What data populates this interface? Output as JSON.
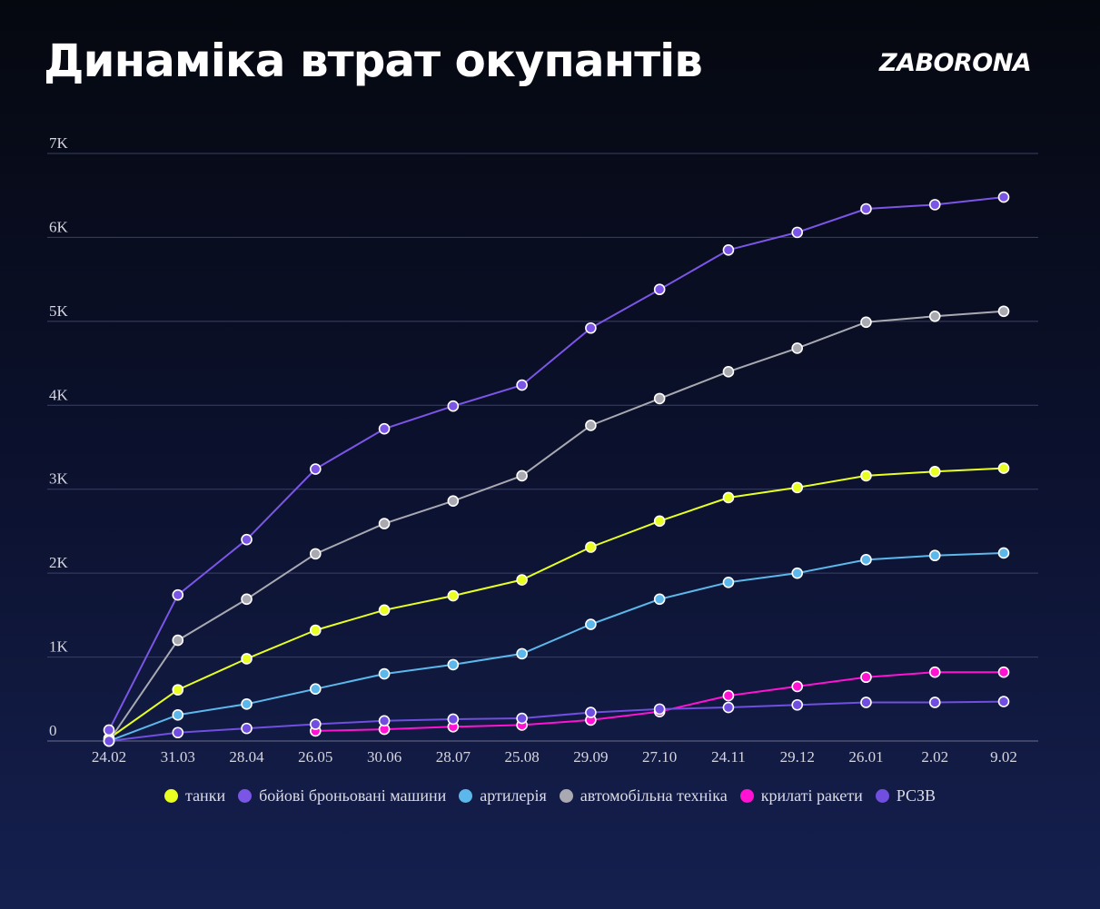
{
  "header": {
    "title": "Динаміка втрат окупантів",
    "logo": "ZABORONA"
  },
  "chart_data": {
    "type": "line",
    "title": "Динаміка втрат окупантів",
    "xlabel": "",
    "ylabel": "",
    "categories": [
      "24.02",
      "31.03",
      "28.04",
      "26.05",
      "30.06",
      "28.07",
      "25.08",
      "29.09",
      "27.10",
      "24.11",
      "29.12",
      "26.01",
      "2.02",
      "9.02"
    ],
    "yticks": [
      {
        "value": 0,
        "label": "0"
      },
      {
        "value": 1000,
        "label": "1K"
      },
      {
        "value": 2000,
        "label": "2K"
      },
      {
        "value": 3000,
        "label": "3K"
      },
      {
        "value": 4000,
        "label": "4K"
      },
      {
        "value": 5000,
        "label": "5K"
      },
      {
        "value": 6000,
        "label": "6K"
      },
      {
        "value": 7000,
        "label": "7K"
      }
    ],
    "ylim": [
      0,
      7000
    ],
    "grid": true,
    "legend_position": "bottom",
    "series": [
      {
        "name": "танки",
        "color": "#e8ff21",
        "values": [
          30,
          610,
          980,
          1320,
          1560,
          1730,
          1920,
          2310,
          2620,
          2900,
          3020,
          3160,
          3210,
          3250
        ]
      },
      {
        "name": "бойові броньовані машини",
        "color": "#7b55e6",
        "values": [
          130,
          1740,
          2400,
          3240,
          3720,
          3990,
          4240,
          4920,
          5380,
          5850,
          6060,
          6340,
          6390,
          6480
        ]
      },
      {
        "name": "артилерія",
        "color": "#5cb8ea",
        "values": [
          0,
          310,
          440,
          620,
          800,
          910,
          1040,
          1390,
          1690,
          1890,
          2000,
          2160,
          2210,
          2240
        ]
      },
      {
        "name": "автомобільна техніка",
        "color": "#a9a9b2",
        "values": [
          0,
          1200,
          1690,
          2230,
          2590,
          2860,
          3160,
          3760,
          4080,
          4400,
          4680,
          4990,
          5060,
          5120
        ]
      },
      {
        "name": "крилаті ракети",
        "color": "#ff12d2",
        "values": [
          null,
          null,
          null,
          120,
          140,
          170,
          190,
          250,
          350,
          540,
          650,
          760,
          820,
          820
        ]
      },
      {
        "name": "РСЗВ",
        "color": "#6f4ee0",
        "values": [
          0,
          100,
          150,
          200,
          240,
          260,
          270,
          340,
          380,
          400,
          430,
          460,
          460,
          470
        ]
      }
    ]
  }
}
